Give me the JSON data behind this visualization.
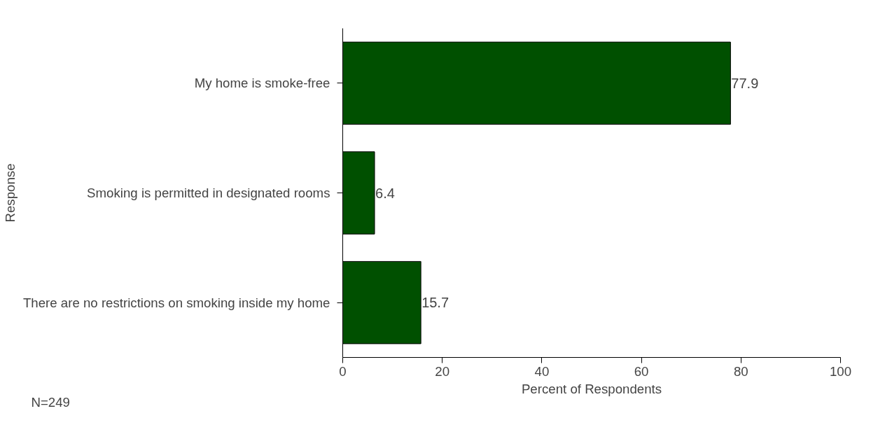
{
  "chart_data": {
    "type": "bar",
    "orientation": "horizontal",
    "xlabel": "Percent of Respondents",
    "ylabel": "Response",
    "categories": [
      "My home is smoke-free",
      "Smoking is permitted in designated rooms",
      "There are no restrictions on smoking inside my home"
    ],
    "values": [
      77.9,
      6.4,
      15.7
    ],
    "color": "#005000",
    "xlim": [
      0,
      100
    ],
    "xticks": [
      0,
      20,
      40,
      60,
      80,
      100
    ],
    "data_labels": true,
    "grid": false,
    "annotations": [
      "N=249"
    ]
  }
}
